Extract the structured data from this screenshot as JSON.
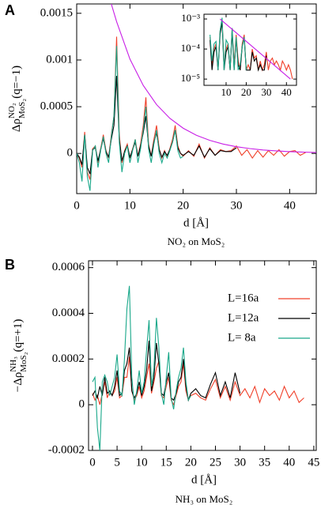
{
  "chart_data": [
    {
      "type": "line",
      "panel": "A",
      "title": "NO₂ on MoS₂",
      "x_label": "d [Å]",
      "y_label": {
        "base": "Δρ",
        "sup": "NO₂",
        "sub": "MoS₂",
        "tail": "(q=−1)"
      },
      "xlim": [
        0,
        45
      ],
      "ylim": [
        -0.00043,
        0.0016
      ],
      "xticks": [
        0,
        10,
        20,
        30,
        40
      ],
      "yticks": [
        0,
        0.0005,
        0.001,
        0.0015
      ],
      "x": [
        0,
        0.5,
        1,
        1.5,
        2,
        2.5,
        3,
        3.5,
        4,
        4.5,
        5,
        5.5,
        6,
        6.5,
        7,
        7.5,
        8,
        8.5,
        9,
        9.5,
        10,
        10.5,
        11,
        11.5,
        12,
        12.5,
        13,
        13.5,
        14,
        14.5,
        15,
        15.5,
        16,
        16.5,
        17,
        17.5,
        18,
        18.5,
        19,
        19.5,
        20,
        21,
        22,
        23,
        24,
        25,
        26,
        27,
        28,
        29,
        30,
        31,
        32,
        33,
        34,
        35,
        36,
        37,
        38,
        39,
        40,
        41,
        42,
        43
      ],
      "series": [
        {
          "color": "#f0402a",
          "values": [
            0,
            -5e-05,
            -0.00015,
            0.00023,
            -0.0002,
            -0.00028,
            5e-05,
            8e-05,
            -0.0001,
            5e-05,
            0.0002,
            3e-05,
            -5e-05,
            0.0002,
            0.0004,
            0.00125,
            0.0002,
            -0.0001,
            3e-05,
            0.0001,
            -5e-05,
            5e-05,
            0.00015,
            -3e-05,
            0.0001,
            0.0003,
            0.0006,
            0.0001,
            -3e-05,
            0.00015,
            0.0003,
            5e-05,
            -5e-05,
            3e-05,
            -3e-05,
            5e-05,
            0.00015,
            0.0003,
            8e-05,
            0,
            -3e-05,
            3e-05,
            -3e-05,
            0.0001,
            -5e-05,
            6e-05,
            -2e-05,
            4e-05,
            2e-05,
            3e-05,
            8e-05,
            -2e-05,
            4e-05,
            -5e-05,
            3e-05,
            -4e-05,
            3e-05,
            -2e-05,
            4e-05,
            -3e-05,
            2e-05,
            3e-05,
            -2e-05,
            1e-05
          ]
        },
        {
          "color": "#000000",
          "values": [
            0,
            -4e-05,
            -0.00012,
            0.0002,
            -0.00015,
            -0.00022,
            4e-05,
            6e-05,
            -8e-05,
            4e-05,
            0.00016,
            2e-05,
            -4e-05,
            0.00015,
            0.0003,
            0.00083,
            0.00015,
            -8e-05,
            2e-05,
            8e-05,
            -4e-05,
            4e-05,
            0.00012,
            -3e-05,
            8e-05,
            0.00022,
            0.0004,
            8e-05,
            -3e-05,
            0.00012,
            0.00022,
            4e-05,
            -4e-05,
            2e-05,
            -2e-05,
            4e-05,
            0.00012,
            0.00025,
            6e-05,
            0,
            -2e-05,
            2e-05,
            -2e-05,
            8e-05,
            -4e-05,
            5e-05,
            -2e-05,
            3e-05,
            2e-05,
            2e-05,
            6e-05,
            null,
            null,
            null,
            null,
            null,
            null,
            null,
            null,
            null,
            null,
            null,
            null,
            null
          ]
        },
        {
          "color": "#1aa88a",
          "values": [
            0,
            -0.0001,
            -0.0003,
            0.0002,
            -0.00025,
            -0.0004,
            3e-05,
            8e-05,
            -0.00015,
            3e-05,
            0.00018,
            0,
            -0.0001,
            0.00018,
            0.0004,
            0.00115,
            0.00012,
            -0.0002,
            0,
            8e-05,
            -0.0001,
            3e-05,
            0.00015,
            -0.0001,
            5e-05,
            0.00025,
            0.0005,
            5e-05,
            -0.0001,
            0.0001,
            0.00025,
            0,
            -0.0001,
            0,
            -5e-05,
            3e-05,
            0.00012,
            0.00025,
            3e-05,
            -5e-05,
            -3e-05,
            null,
            null,
            null,
            null,
            null,
            null,
            null,
            null,
            null,
            null,
            null,
            null,
            null,
            null,
            null,
            null,
            null,
            null,
            null,
            null,
            null,
            null,
            null
          ]
        },
        {
          "color": "#c81ee6",
          "x": [
            6.5,
            7.5,
            10,
            12.5,
            15,
            17.5,
            20,
            22.5,
            25,
            27.5,
            30,
            32.5,
            35,
            37.5,
            40,
            42.5,
            45
          ],
          "values": [
            0.0016,
            0.00141,
            0.00101,
            0.000728,
            0.000523,
            0.000376,
            0.00027,
            0.000194,
            0.00014,
            0.0001,
            7.2e-05,
            5.2e-05,
            3.7e-05,
            2.7e-05,
            1.9e-05,
            1.4e-05,
            1e-05
          ]
        }
      ]
    },
    {
      "type": "line",
      "log_y": true,
      "xlim": [
        -1,
        45
      ],
      "ylim": [
        6.2e-06,
        0.00144
      ],
      "xticks": [
        10,
        20,
        30,
        40
      ],
      "yticks": [
        {
          "value": 0.001,
          "label": "10⁻³"
        },
        {
          "value": 0.0001,
          "label": "10⁻⁴"
        },
        {
          "value": 1e-05,
          "label": "10⁻⁵"
        }
      ],
      "x": [
        2,
        3,
        4,
        5,
        6,
        7,
        8,
        9,
        10,
        11,
        12,
        13,
        14,
        15,
        16,
        17,
        18,
        19,
        20,
        21,
        22,
        23,
        24,
        25,
        26,
        27,
        28,
        29,
        30,
        31,
        32,
        33,
        34,
        35,
        36,
        37,
        38,
        39,
        40,
        41,
        42,
        43
      ],
      "series": [
        {
          "color": "#f0402a",
          "values": [
            0.00025,
            3e-05,
            0.0001,
            0.00015,
            2e-05,
            0.0004,
            0.001,
            3e-05,
            0.0001,
            0.00015,
            2e-05,
            0.0005,
            3e-05,
            0.0003,
            4e-05,
            2e-05,
            0.00015,
            0.0003,
            2e-05,
            3e-05,
            2e-05,
            0.0001,
            5e-05,
            6e-05,
            2e-05,
            4e-05,
            2e-05,
            3e-05,
            8e-05,
            2e-05,
            4e-05,
            5e-05,
            3e-05,
            4e-05,
            3e-05,
            2e-05,
            4e-05,
            3e-05,
            2e-05,
            3e-05,
            2e-05,
            1e-05
          ]
        },
        {
          "color": "#000000",
          "values": [
            0.0002,
            2e-05,
            8e-05,
            0.00012,
            2e-05,
            0.0003,
            0.0008,
            2e-05,
            8e-05,
            0.00012,
            2e-05,
            0.0004,
            2e-05,
            0.00022,
            3e-05,
            2e-05,
            0.00012,
            0.00025,
            2e-05,
            2e-05,
            2e-05,
            8e-05,
            4e-05,
            5e-05,
            2e-05,
            3e-05,
            2e-05,
            2e-05,
            6e-05,
            null,
            null,
            null,
            null,
            null,
            null,
            null,
            null,
            null,
            null,
            null,
            null,
            null
          ]
        },
        {
          "color": "#1aa88a",
          "values": [
            0.0003,
            4e-05,
            0.00015,
            0.00018,
            2e-05,
            0.0004,
            0.0011,
            2e-05,
            0.0002,
            0.00015,
            2e-05,
            0.0005,
            2e-05,
            0.00025,
            2e-05,
            3e-05,
            0.00012,
            0.00025,
            2e-05,
            null,
            null,
            null,
            null,
            null,
            null,
            null,
            null,
            null,
            null,
            null,
            null,
            null,
            null,
            null,
            null,
            null,
            null,
            null,
            null,
            null,
            null,
            null
          ]
        },
        {
          "color": "#c81ee6",
          "x": [
            7,
            42
          ],
          "values": [
            0.001,
            1e-05
          ]
        }
      ]
    },
    {
      "type": "line",
      "panel": "B",
      "title": "NH₃ on MoS₂",
      "x_label": "d [Å]",
      "y_label": {
        "base": "−Δρ",
        "sup": "NH₃",
        "sub": "MoS₂",
        "tail": "(q=+1)"
      },
      "xlim": [
        -0.8,
        45.5
      ],
      "ylim": [
        -0.0002,
        0.00063
      ],
      "xticks": [
        0,
        5,
        10,
        15,
        20,
        25,
        30,
        35,
        40,
        45
      ],
      "yticks": [
        -0.0002,
        0,
        0.0002,
        0.0004,
        0.0006
      ],
      "legend": "upper right",
      "x": [
        0,
        0.5,
        1,
        1.5,
        2,
        2.5,
        3,
        3.5,
        4,
        4.5,
        5,
        5.5,
        6,
        6.5,
        7,
        7.5,
        8,
        8.5,
        9,
        9.5,
        10,
        10.5,
        11,
        11.5,
        12,
        12.5,
        13,
        13.5,
        14,
        14.5,
        15,
        15.5,
        16,
        16.5,
        17,
        17.5,
        18,
        18.5,
        19,
        19.5,
        20,
        21,
        22,
        23,
        24,
        25,
        26,
        27,
        28,
        29,
        30,
        31,
        32,
        33,
        34,
        35,
        36,
        37,
        38,
        39,
        40,
        41,
        42,
        43
      ],
      "series": [
        {
          "name": "L=16a",
          "color": "#f0402a",
          "values": [
            5e-05,
            2e-05,
            4e-05,
            0,
            5e-05,
            0.0001,
            3e-05,
            6e-05,
            4e-05,
            6e-05,
            0.00012,
            3e-05,
            4e-05,
            0.00012,
            0.00012,
            0.00021,
            6e-05,
            2e-05,
            4e-05,
            8e-05,
            3e-05,
            6e-05,
            0.00012,
            0.00018,
            5e-05,
            0.0001,
            0.00016,
            0.00019,
            4e-05,
            3e-05,
            8e-05,
            0.00012,
            2e-05,
            0,
            4e-05,
            8e-05,
            0.0001,
            0.00018,
            6e-05,
            2e-05,
            4e-05,
            5e-05,
            3e-05,
            2e-05,
            7e-05,
            0.00011,
            3e-05,
            8e-05,
            2e-05,
            0.0001,
            4e-05,
            7e-05,
            3e-05,
            8e-05,
            1e-05,
            7e-05,
            4e-05,
            6e-05,
            2e-05,
            8e-05,
            3e-05,
            6e-05,
            1e-05,
            3e-05
          ]
        },
        {
          "name": "L=12a",
          "color": "#000000",
          "values": [
            4e-05,
            6e-05,
            3e-05,
            8e-05,
            4e-05,
            0.00012,
            5e-05,
            6e-05,
            4e-05,
            8e-05,
            0.00015,
            4e-05,
            5e-05,
            0.00015,
            0.00018,
            0.00025,
            6e-05,
            3e-05,
            5e-05,
            0.0001,
            4e-05,
            8e-05,
            0.00015,
            0.00028,
            6e-05,
            0.00012,
            0.00027,
            0.00018,
            5e-05,
            4e-05,
            0.0001,
            0.00014,
            3e-05,
            2e-05,
            5e-05,
            0.0001,
            0.00012,
            0.0002,
            8e-05,
            2e-05,
            5e-05,
            7e-05,
            4e-05,
            3e-05,
            9e-05,
            0.00014,
            4e-05,
            0.0001,
            3e-05,
            0.00014,
            5e-05,
            null,
            null,
            null,
            null,
            null,
            null,
            null,
            null,
            null,
            null,
            null,
            null,
            null
          ]
        },
        {
          "name": "L=  8a",
          "color": "#1aa88a",
          "values": [
            0.0001,
            0.00012,
            -0.0001,
            -0.0002,
            0.0001,
            0.00013,
            0.0001,
            4e-05,
            8e-05,
            0.00012,
            0.00022,
            6e-05,
            4e-05,
            0.0002,
            0.00042,
            0.00052,
            0.00012,
            0,
            6e-05,
            0.00015,
            5e-05,
            0.0001,
            0.00024,
            0.00037,
            8e-05,
            0.00016,
            0.00038,
            0.00025,
            5e-05,
            0,
            0.00012,
            0.00023,
            3e-05,
            -2e-05,
            6e-05,
            0.00012,
            0.00016,
            0.00025,
            0.0001,
            2e-05,
            4e-05,
            null,
            null,
            null,
            null,
            null,
            null,
            null,
            null,
            null,
            null,
            null,
            null,
            null,
            null,
            null,
            null,
            null,
            null,
            null,
            null,
            null,
            null,
            null
          ]
        }
      ]
    }
  ]
}
